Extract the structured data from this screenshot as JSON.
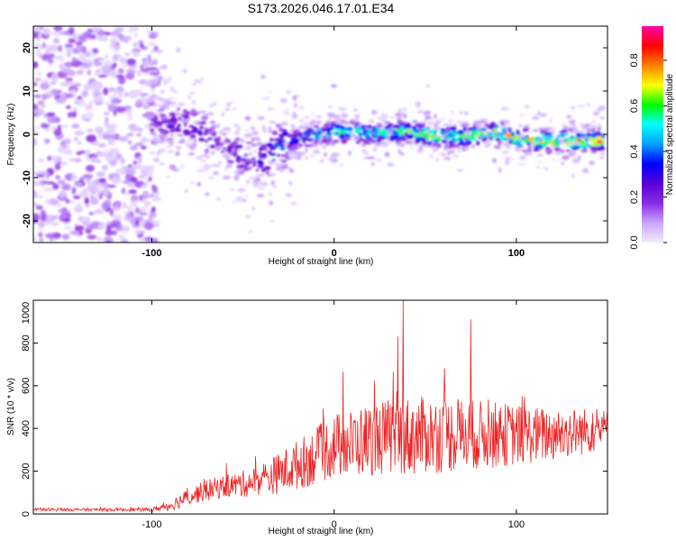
{
  "chart_data": [
    {
      "type": "heatmap",
      "title": "S173.2026.046.17.01.E34",
      "xlabel": "Height of straight line (km)",
      "ylabel": "Frequency (Hz)",
      "xlim": [
        -165,
        150
      ],
      "ylim": [
        -25,
        25
      ],
      "x_ticks": [
        "-100",
        "0",
        "100"
      ],
      "x_tick_values": [
        -100,
        0,
        100
      ],
      "y_ticks": [
        "20",
        "10",
        "0",
        "-10",
        "-20"
      ],
      "y_tick_values": [
        20,
        10,
        0,
        -10,
        -20
      ],
      "colorbar": {
        "label": "Normalized spectral amplitude",
        "range": [
          0,
          0.95
        ],
        "ticks": [
          "0.0",
          "0.2",
          "0.4",
          "0.6",
          "0.8"
        ],
        "tick_values": [
          0.0,
          0.2,
          0.4,
          0.6,
          0.8
        ],
        "colors": [
          "#f3eaff",
          "#c9a5ff",
          "#8a2be2",
          "#5a00d8",
          "#0000ff",
          "#00a0ff",
          "#00ffff",
          "#00ff00",
          "#ffff00",
          "#ff8000",
          "#ff0000",
          "#ff00aa"
        ]
      },
      "ridge": {
        "description": "frequency of strongest amplitude vs height",
        "x": [
          -100,
          -90,
          -80,
          -70,
          -60,
          -50,
          -40,
          -30,
          -20,
          -10,
          0,
          10,
          20,
          30,
          40,
          50,
          60,
          70,
          80,
          90,
          100,
          110,
          120,
          130,
          140,
          148
        ],
        "y": [
          3,
          2,
          2,
          0,
          -3,
          -5,
          -6,
          -3,
          -1,
          0,
          0.5,
          0.5,
          0,
          0.5,
          0.5,
          0,
          -0.5,
          -0.5,
          0,
          0.5,
          -1,
          -1.5,
          -1.5,
          -1.5,
          -1.5,
          -1.5
        ],
        "amplitude": [
          0.25,
          0.3,
          0.3,
          0.3,
          0.25,
          0.3,
          0.35,
          0.45,
          0.5,
          0.55,
          0.6,
          0.65,
          0.6,
          0.6,
          0.7,
          0.75,
          0.75,
          0.7,
          0.75,
          0.8,
          0.8,
          0.85,
          0.9,
          0.9,
          0.88,
          0.85
        ]
      }
    },
    {
      "type": "line",
      "xlabel": "Height of straight line (km)",
      "ylabel": "SNR (10 * v/v)",
      "xlim": [
        -165,
        150
      ],
      "ylim": [
        0,
        1000
      ],
      "x_ticks": [
        "-100",
        "0",
        "100"
      ],
      "x_tick_values": [
        -100,
        0,
        100
      ],
      "y_ticks": [
        "0",
        "200",
        "400",
        "600",
        "800",
        "1000"
      ],
      "y_tick_values": [
        0,
        200,
        400,
        600,
        800,
        1000
      ],
      "color": "#ee2222",
      "envelope": {
        "description": "approximate running mean and spread of the noisy SNR trace",
        "x": [
          -165,
          -130,
          -100,
          -90,
          -80,
          -70,
          -60,
          -50,
          -40,
          -30,
          -20,
          -10,
          0,
          10,
          20,
          30,
          40,
          50,
          60,
          70,
          80,
          90,
          100,
          110,
          120,
          130,
          140,
          150
        ],
        "mean": [
          20,
          20,
          20,
          40,
          80,
          110,
          130,
          140,
          160,
          190,
          230,
          270,
          320,
          330,
          350,
          360,
          360,
          370,
          370,
          370,
          370,
          370,
          370,
          370,
          370,
          380,
          390,
          400
        ],
        "spread": [
          8,
          8,
          10,
          30,
          45,
          55,
          60,
          70,
          80,
          110,
          130,
          150,
          170,
          180,
          190,
          200,
          210,
          200,
          200,
          190,
          180,
          170,
          160,
          150,
          140,
          130,
          120,
          100
        ]
      },
      "peaks": [
        {
          "x": 38,
          "y": 1000
        },
        {
          "x": 75,
          "y": 910
        },
        {
          "x": 35,
          "y": 830
        }
      ]
    }
  ]
}
